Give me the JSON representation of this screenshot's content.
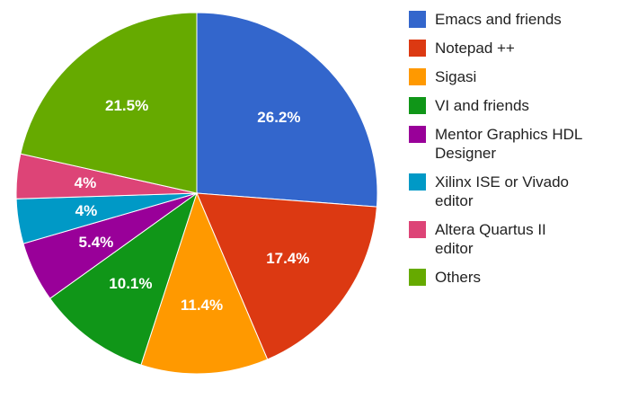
{
  "chart_data": {
    "type": "pie",
    "start_angle_deg": 0,
    "direction": "clockwise",
    "legend_position": "right",
    "slices": [
      {
        "name": "Emacs and friends",
        "legend_lines": [
          "Emacs and friends"
        ],
        "value": 26.2,
        "label": "26.2%",
        "color": "#3366cc"
      },
      {
        "name": "Notepad ++",
        "legend_lines": [
          "Notepad ++"
        ],
        "value": 17.4,
        "label": "17.4%",
        "color": "#dc3912"
      },
      {
        "name": "Sigasi",
        "legend_lines": [
          "Sigasi"
        ],
        "value": 11.4,
        "label": "11.4%",
        "color": "#ff9900"
      },
      {
        "name": "VI and friends",
        "legend_lines": [
          "VI and friends"
        ],
        "value": 10.1,
        "label": "10.1%",
        "color": "#109618"
      },
      {
        "name": "Mentor Graphics HDL Designer",
        "legend_lines": [
          "Mentor Graphics HDL",
          "Designer"
        ],
        "value": 5.4,
        "label": "5.4%",
        "color": "#990099"
      },
      {
        "name": "Xilinx ISE or Vivado editor",
        "legend_lines": [
          "Xilinx ISE or Vivado",
          "editor"
        ],
        "value": 4,
        "label": "4%",
        "color": "#0099c6"
      },
      {
        "name": "Altera Quartus II editor",
        "legend_lines": [
          "Altera Quartus II",
          "editor"
        ],
        "value": 4,
        "label": "4%",
        "color": "#dd4477"
      },
      {
        "name": "Others",
        "legend_lines": [
          "Others"
        ],
        "value": 21.5,
        "label": "21.5%",
        "color": "#66aa00"
      }
    ]
  }
}
